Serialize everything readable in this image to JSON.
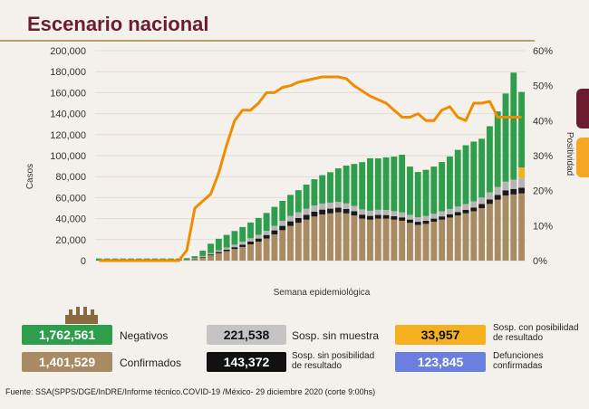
{
  "title": "Escenario nacional",
  "chart_data": {
    "type": "bar",
    "xlabel": "Semana epidemiológica",
    "ylabel": "Casos",
    "y2label": "Positividad",
    "ylim": [
      0,
      200000
    ],
    "y2lim": [
      0,
      60
    ],
    "yticks": [
      "0",
      "20,000",
      "40,000",
      "60,000",
      "80,000",
      "100,000",
      "120,000",
      "140,000",
      "160,000",
      "180,000",
      "200,000"
    ],
    "y2ticks": [
      "0%",
      "10%",
      "20%",
      "30%",
      "40%",
      "50%",
      "60%"
    ],
    "stack_colors": {
      "confirmados": "#a88a63",
      "defunciones": "#1a1a1a",
      "sin_muestra": "#b5b5b5",
      "con_posibilidad": "#f5b01f",
      "negativos": "#2e9e4d"
    },
    "line_color": "#f08c00",
    "series": [
      {
        "key": "confirmados",
        "values": [
          0,
          0,
          0,
          0,
          0,
          0,
          0,
          0,
          0,
          0,
          0,
          500,
          1500,
          3000,
          5000,
          7000,
          9000,
          11000,
          13000,
          15500,
          18000,
          21000,
          25000,
          29000,
          33000,
          36000,
          39000,
          42000,
          44000,
          45000,
          46000,
          45000,
          43000,
          40000,
          39000,
          40000,
          40000,
          39000,
          38000,
          36000,
          34000,
          35000,
          37000,
          39000,
          41000,
          43000,
          45000,
          47000,
          50000,
          54000,
          58000,
          62000,
          63000,
          64000
        ]
      },
      {
        "key": "defunciones",
        "values": [
          0,
          0,
          0,
          0,
          0,
          0,
          0,
          0,
          0,
          0,
          0,
          100,
          300,
          600,
          900,
          1200,
          1500,
          1800,
          2200,
          2600,
          3000,
          3400,
          3800,
          4100,
          4400,
          4600,
          4700,
          4700,
          4600,
          4500,
          4400,
          4200,
          4000,
          3800,
          3600,
          3500,
          3400,
          3300,
          3200,
          3100,
          3000,
          3000,
          3000,
          3100,
          3200,
          3300,
          3400,
          3600,
          3900,
          4200,
          4600,
          5000,
          5300,
          5500
        ]
      },
      {
        "key": "sin_muestra",
        "values": [
          0,
          0,
          0,
          0,
          0,
          0,
          0,
          0,
          0,
          0,
          0,
          200,
          400,
          800,
          1200,
          1600,
          2000,
          2400,
          2800,
          3200,
          3600,
          4000,
          4400,
          4800,
          5200,
          5500,
          5700,
          5800,
          5800,
          5700,
          5500,
          5300,
          5100,
          5000,
          4900,
          4900,
          4900,
          4800,
          4700,
          4500,
          4400,
          4500,
          4600,
          4800,
          5000,
          5200,
          5500,
          5800,
          6200,
          6800,
          7500,
          8200,
          8800,
          9200
        ]
      },
      {
        "key": "con_posibilidad",
        "values": [
          0,
          0,
          0,
          0,
          0,
          0,
          0,
          0,
          0,
          0,
          0,
          0,
          0,
          0,
          0,
          0,
          0,
          0,
          0,
          0,
          0,
          0,
          0,
          0,
          0,
          0,
          0,
          0,
          0,
          0,
          0,
          0,
          0,
          0,
          0,
          0,
          0,
          0,
          0,
          0,
          0,
          0,
          0,
          0,
          0,
          0,
          0,
          0,
          0,
          0,
          0,
          0,
          0,
          10000
        ]
      },
      {
        "key": "negativos",
        "values": [
          2000,
          2000,
          2000,
          2000,
          2000,
          2000,
          2000,
          2000,
          2000,
          2000,
          2000,
          1500,
          2000,
          5000,
          9000,
          11000,
          12000,
          13000,
          14000,
          15000,
          16000,
          17000,
          18000,
          19000,
          20000,
          21000,
          23000,
          25000,
          27000,
          29000,
          32000,
          36000,
          40000,
          45000,
          50000,
          49000,
          50000,
          52000,
          55000,
          46000,
          43000,
          44000,
          45000,
          47000,
          50000,
          54000,
          56000,
          57000,
          56000,
          63000,
          72000,
          84000,
          102000,
          72000
        ]
      }
    ],
    "positividad": [
      0,
      0,
      0,
      0,
      0,
      0,
      0,
      0,
      0,
      0,
      0,
      3,
      15,
      17,
      19,
      25,
      33,
      40,
      43,
      43,
      45,
      48,
      48,
      49.5,
      50,
      51,
      51.5,
      52,
      52.5,
      52.5,
      52.5,
      52,
      50,
      48.5,
      47,
      46,
      45,
      43,
      41,
      41,
      42,
      40,
      40,
      43,
      44,
      41,
      40,
      45,
      45,
      45.5,
      41,
      41,
      41,
      41
    ]
  },
  "badges": [
    {
      "value": "1,762,561",
      "color": "#2e9e4d",
      "label": "Negativos"
    },
    {
      "value": "221,538",
      "color": "#c4c4c4",
      "label": "Sosp. sin muestra"
    },
    {
      "value": "33,957",
      "color": "#f5b01f",
      "label_lines": [
        "Sosp. con posibilidad",
        "de resultado"
      ]
    },
    {
      "value": "1,401,529",
      "color": "#a88a63",
      "label": "Confirmados"
    },
    {
      "value": "143,372",
      "color": "#111111",
      "label_lines": [
        "Sosp. sin posibilidad",
        "de resultado"
      ]
    },
    {
      "value": "123,845",
      "color": "#6a7fe0",
      "label_lines": [
        "Defunciones",
        "confirmadas"
      ]
    }
  ],
  "footer": "Fuente: SSA(SPPS/DGE/InDRE/Informe técnico.COVID-19 /México- 29 diciembre 2020 (corte 9:00hs)"
}
